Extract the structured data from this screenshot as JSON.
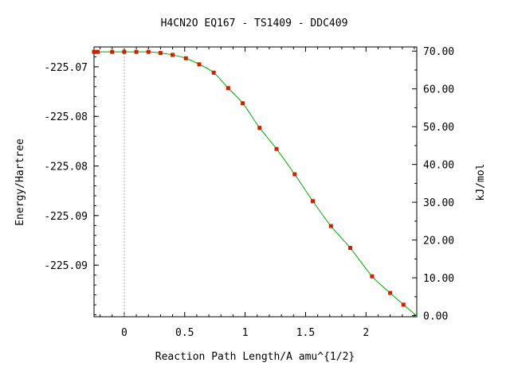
{
  "chart_data": {
    "type": "line",
    "title": "H4CN2O   EQ167 - TS1409 - DDC409",
    "xlabel": "Reaction Path Length/A amu^{1/2}",
    "ylabel": "Energy/Hartree",
    "y2label": "kJ/mol",
    "xlim": [
      -0.25,
      2.42
    ],
    "ylim": [
      -225.0937,
      -225.0665
    ],
    "y2lim": [
      -0.3,
      71.1
    ],
    "x_ticks": [
      0,
      0.5,
      1,
      1.5,
      2
    ],
    "x_tick_labels": [
      "0",
      "0.5",
      "1",
      "1.5",
      "2"
    ],
    "y_ticks": [
      -225.0685,
      -225.0735,
      -225.0785,
      -225.0835,
      -225.0885
    ],
    "y_tick_labels": [
      "-225.07",
      "-225.08",
      "-225.08",
      "-225.09",
      "-225.09"
    ],
    "y2_ticks": [
      0,
      10,
      20,
      30,
      40,
      50,
      60,
      70
    ],
    "y2_tick_labels": [
      "0.00",
      "10.00",
      "20.00",
      "30.00",
      "40.00",
      "50.00",
      "60.00",
      "70.00"
    ],
    "reference_x": 0,
    "grid": false,
    "legend": "none",
    "colors": {
      "line": "#00aa00",
      "marker": "#cc2200",
      "reference": "#aaaaaa"
    },
    "series": [
      {
        "x": [
          -0.25,
          -0.22,
          -0.1,
          0.0,
          0.1,
          0.2,
          0.3,
          0.4,
          0.51,
          0.62,
          0.74,
          0.86,
          0.98,
          1.12,
          1.26,
          1.41,
          1.56,
          1.71,
          1.87,
          2.05,
          2.2,
          2.31
        ],
        "y": [
          69.8,
          69.8,
          69.8,
          69.8,
          69.8,
          69.8,
          69.5,
          69.0,
          68.1,
          66.5,
          64.3,
          60.2,
          56.2,
          49.7,
          44.1,
          37.4,
          30.3,
          23.7,
          17.9,
          10.4,
          6.0,
          2.9
        ]
      }
    ]
  }
}
